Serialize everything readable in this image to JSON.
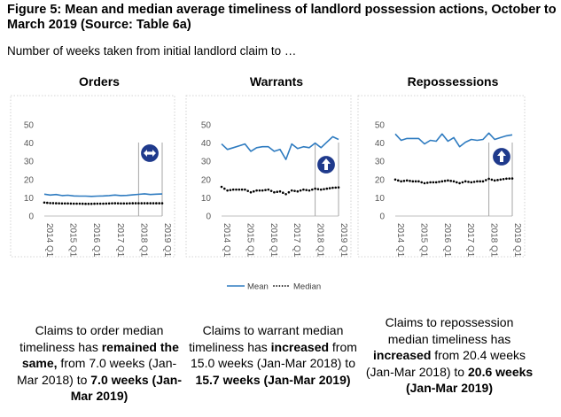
{
  "figure": {
    "title": "Figure 5: Mean and median average timeliness of landlord possession actions, October to March 2019 (Source: Table 6a)",
    "subtitle": "Number of weeks taken from initial landlord claim to …"
  },
  "colors": {
    "mean": "#2E7BC0",
    "median": "#000000",
    "marker": "#1F3A8C",
    "axis": "#BFBFBF",
    "grid_dotted": "#C8C8C8"
  },
  "chart_data": [
    {
      "type": "line",
      "title": "Orders",
      "ylim": [
        0,
        50
      ],
      "yticks": [
        0,
        10,
        20,
        30,
        40,
        50
      ],
      "xticks": [
        "2014 Q1",
        "2015 Q1",
        "2016 Q1",
        "2017 Q1",
        "2018 Q1",
        "2019 Q1"
      ],
      "x": [
        "2014 Q1",
        "2014 Q2",
        "2014 Q3",
        "2014 Q4",
        "2015 Q1",
        "2015 Q2",
        "2015 Q3",
        "2015 Q4",
        "2016 Q1",
        "2016 Q2",
        "2016 Q3",
        "2016 Q4",
        "2017 Q1",
        "2017 Q2",
        "2017 Q3",
        "2017 Q4",
        "2018 Q1",
        "2018 Q2",
        "2018 Q3",
        "2018 Q4",
        "2019 Q1"
      ],
      "series": [
        {
          "name": "Mean",
          "values": [
            12,
            11.5,
            11.8,
            11.2,
            11.4,
            11,
            10.9,
            10.9,
            10.8,
            10.9,
            11,
            11.2,
            11.5,
            11.2,
            11.3,
            11.6,
            11.9,
            12.2,
            11.8,
            12,
            12.1
          ]
        },
        {
          "name": "Median",
          "values": [
            7.4,
            7.1,
            7.0,
            6.9,
            6.9,
            6.8,
            6.8,
            6.7,
            6.7,
            6.8,
            6.8,
            6.9,
            7.0,
            6.9,
            6.9,
            7.0,
            7.0,
            7.0,
            7.0,
            7.0,
            7.0
          ]
        }
      ],
      "marker": "left-right-arrow-icon"
    },
    {
      "type": "line",
      "title": "Warrants",
      "ylim": [
        0,
        50
      ],
      "yticks": [
        0,
        10,
        20,
        30,
        40,
        50
      ],
      "xticks": [
        "2014 Q1",
        "2015 Q1",
        "2016 Q1",
        "2017 Q1",
        "2018 Q1",
        "2019 Q1"
      ],
      "x": [
        "2014 Q1",
        "2014 Q2",
        "2014 Q3",
        "2014 Q4",
        "2015 Q1",
        "2015 Q2",
        "2015 Q3",
        "2015 Q4",
        "2016 Q1",
        "2016 Q2",
        "2016 Q3",
        "2016 Q4",
        "2017 Q1",
        "2017 Q2",
        "2017 Q3",
        "2017 Q4",
        "2018 Q1",
        "2018 Q2",
        "2018 Q3",
        "2018 Q4",
        "2019 Q1"
      ],
      "series": [
        {
          "name": "Mean",
          "values": [
            39.5,
            36.5,
            37.5,
            38.5,
            39.5,
            35.5,
            37.5,
            38,
            38,
            35.5,
            36.5,
            31,
            39.5,
            37,
            38,
            37.5,
            40,
            37.5,
            40.5,
            43.5,
            42
          ]
        },
        {
          "name": "Median",
          "values": [
            16,
            14,
            14.5,
            14.5,
            14.5,
            13,
            14,
            14,
            14.5,
            13,
            13.5,
            12,
            14,
            13.5,
            14.5,
            14,
            15,
            14.5,
            15,
            15.5,
            15.7
          ]
        }
      ],
      "marker": "up-arrow-icon"
    },
    {
      "type": "line",
      "title": "Repossessions",
      "ylim": [
        0,
        50
      ],
      "yticks": [
        0,
        10,
        20,
        30,
        40,
        50
      ],
      "xticks": [
        "2014 Q1",
        "2015 Q1",
        "2016 Q1",
        "2017 Q1",
        "2018 Q1",
        "2019 Q1"
      ],
      "x": [
        "2014 Q1",
        "2014 Q2",
        "2014 Q3",
        "2014 Q4",
        "2015 Q1",
        "2015 Q2",
        "2015 Q3",
        "2015 Q4",
        "2016 Q1",
        "2016 Q2",
        "2016 Q3",
        "2016 Q4",
        "2017 Q1",
        "2017 Q2",
        "2017 Q3",
        "2017 Q4",
        "2018 Q1",
        "2018 Q2",
        "2018 Q3",
        "2018 Q4",
        "2019 Q1"
      ],
      "series": [
        {
          "name": "Mean",
          "values": [
            45,
            41.5,
            42.5,
            42.5,
            42.5,
            39.5,
            41.5,
            41,
            45,
            41,
            43,
            38,
            40.5,
            42,
            41.5,
            42,
            45.5,
            42,
            43,
            44,
            44.5
          ]
        },
        {
          "name": "Median",
          "values": [
            20,
            19,
            19.5,
            19,
            19,
            18,
            18.5,
            18.5,
            19,
            19.5,
            19,
            18,
            19,
            18.5,
            19,
            19,
            20.4,
            19.5,
            20,
            20.5,
            20.6
          ]
        }
      ],
      "marker": "up-arrow-icon"
    }
  ],
  "legend": {
    "mean": "Mean",
    "median": "Median"
  },
  "captions": {
    "orders": {
      "p1": "Claims to order median timeliness has ",
      "b1": "remained the same,",
      "p2": " from 7.0 weeks (Jan-Mar 2018) to ",
      "b2": "7.0 weeks (Jan-Mar 2019)"
    },
    "warrants": {
      "p1": "Claims to warrant median timeliness has ",
      "b1": "increased",
      "p2": " from 15.0 weeks (Jan-Mar 2018) to ",
      "b2": "15.7 weeks (Jan-Mar 2019)"
    },
    "repossessions": {
      "p1": "Claims to repossession median timeliness has ",
      "b1": "increased",
      "p2": " from 20.4 weeks (Jan-Mar 2018) to ",
      "b2": "20.6 weeks (Jan-Mar 2019)"
    }
  }
}
